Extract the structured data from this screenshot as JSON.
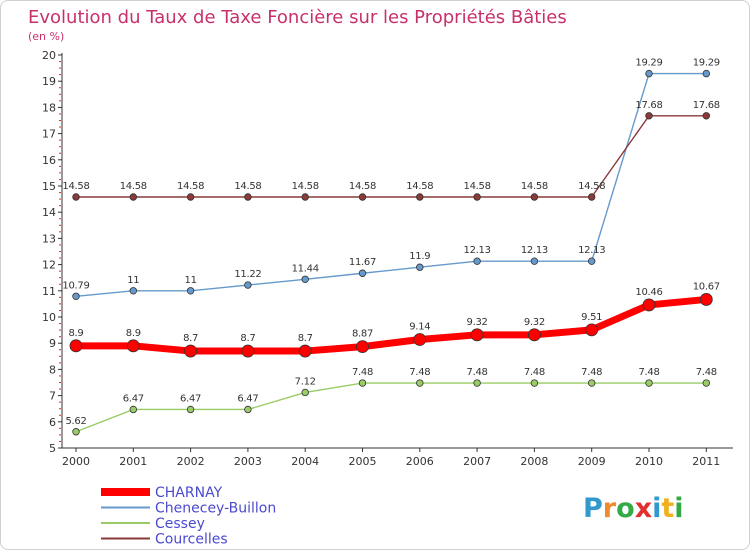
{
  "chart_data": {
    "type": "line",
    "title": "Evolution du Taux de Taxe Foncière sur les Propriétés Bâties",
    "subtitle": "(en %)",
    "x": [
      "2000",
      "2001",
      "2002",
      "2003",
      "2004",
      "2005",
      "2006",
      "2007",
      "2008",
      "2009",
      "2010",
      "2011"
    ],
    "yticks": [
      5,
      6,
      7,
      8,
      9,
      10,
      11,
      12,
      13,
      14,
      15,
      16,
      17,
      18,
      19,
      20
    ],
    "ylim": [
      5,
      20
    ],
    "series": [
      {
        "name": "CHARNAY",
        "color": "#ff0000",
        "values": [
          8.9,
          8.9,
          8.7,
          8.7,
          8.7,
          8.87,
          9.14,
          9.32,
          9.32,
          9.51,
          10.46,
          10.67
        ],
        "labels": [
          "8.9",
          "8.9",
          "8.7",
          "8.7",
          "8.7",
          "8.87",
          "9.14",
          "9.32",
          "9.32",
          "9.51",
          "10.46",
          "10.67"
        ]
      },
      {
        "name": "Chenecey-Buillon",
        "color": "#6699cc",
        "values": [
          10.79,
          11,
          11,
          11.22,
          11.44,
          11.67,
          11.9,
          12.13,
          12.13,
          12.13,
          19.29,
          19.29
        ],
        "labels": [
          "10.79",
          "11",
          "11",
          "11.22",
          "11.44",
          "11.67",
          "11.9",
          "12.13",
          "12.13",
          "12.13",
          "19.29",
          "19.29"
        ]
      },
      {
        "name": "Cessey",
        "color": "#99cc66",
        "values": [
          5.62,
          6.47,
          6.47,
          6.47,
          7.12,
          7.48,
          7.48,
          7.48,
          7.48,
          7.48,
          7.48,
          7.48
        ],
        "labels": [
          "5.62",
          "6.47",
          "6.47",
          "6.47",
          "7.12",
          "7.48",
          "7.48",
          "7.48",
          "7.48",
          "7.48",
          "7.48",
          "7.48"
        ]
      },
      {
        "name": "Courcelles",
        "color": "#8b3a3a",
        "values": [
          14.58,
          14.58,
          14.58,
          14.58,
          14.58,
          14.58,
          14.58,
          14.58,
          14.58,
          14.58,
          17.68,
          17.68
        ],
        "labels": [
          "14.58",
          "14.58",
          "14.58",
          "14.58",
          "14.58",
          "14.58",
          "14.58",
          "14.58",
          "14.58",
          "14.58",
          "17.68",
          "17.68"
        ]
      }
    ],
    "legend_position": "bottom-left",
    "grid": false
  },
  "branding": {
    "logo_text": "Proxiti",
    "colors": [
      "#3399cc",
      "#f08a2c",
      "#33aa44",
      "#e03030",
      "#3399cc",
      "#f0b020",
      "#33aa44"
    ]
  }
}
